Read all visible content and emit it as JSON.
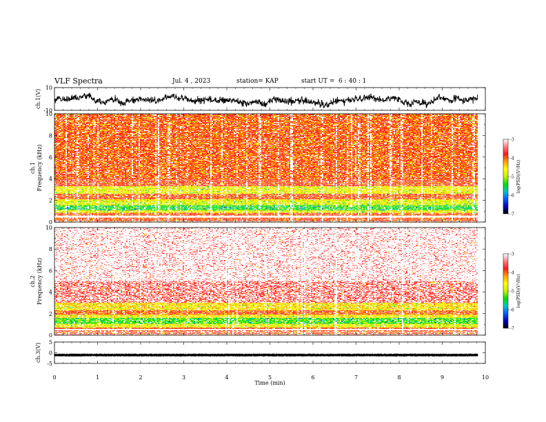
{
  "header": {
    "title": "VLF Spectra",
    "date": "Jul. 4 , 2023",
    "station": "station= KAP",
    "start": "start UT =  6 : 40 : 1"
  },
  "chart_data": [
    {
      "type": "line",
      "panel": "ch1-waveform",
      "ylabel": "ch.1(V)",
      "ylim": [
        -10,
        10
      ],
      "yticks": [
        10,
        -10
      ],
      "xlim": [
        0,
        10
      ],
      "x_data_extent": [
        0,
        9.82
      ],
      "series": [
        {
          "approx_mean": 0,
          "approx_range": [
            -8,
            5
          ]
        }
      ]
    },
    {
      "type": "heatmap",
      "panel": "ch1-spectrogram",
      "ylabel": "ch.1\nFrequency (kHz)",
      "ylim": [
        0,
        10
      ],
      "yticks": [
        0,
        2,
        4,
        6,
        8,
        10
      ],
      "xlim": [
        0,
        10
      ],
      "x_data_extent": [
        0,
        9.82
      ],
      "bands": [
        {
          "f_range": [
            4.0,
            10.0
          ],
          "level": -3.95,
          "style": "dense red"
        },
        {
          "f_range": [
            3.3,
            4.0
          ],
          "level": -3.85,
          "style": "red mottled"
        },
        {
          "f_range": [
            2.6,
            3.3
          ],
          "level": -4.7,
          "style": "yellow"
        },
        {
          "f_range": [
            2.1,
            2.6
          ],
          "level": -3.9,
          "style": "red"
        },
        {
          "f_range": [
            1.95,
            2.1
          ],
          "level": -4.6,
          "style": "yellow"
        },
        {
          "f_range": [
            1.55,
            1.95
          ],
          "level": -4.8,
          "style": "yellow"
        },
        {
          "f_range": [
            1.1,
            1.55
          ],
          "level": -5.4,
          "style": "green"
        },
        {
          "f_range": [
            0.85,
            1.1
          ],
          "level": -4.7,
          "style": "yellow"
        },
        {
          "f_range": [
            0.0,
            0.85
          ],
          "level": -3.9,
          "style": "red white-lines"
        }
      ]
    },
    {
      "type": "heatmap",
      "panel": "ch2-spectrogram",
      "ylabel": "ch.2\nFrequency (kHz)",
      "ylim": [
        0,
        10
      ],
      "yticks": [
        0,
        2,
        4,
        6,
        8,
        10
      ],
      "xlim": [
        0,
        10
      ],
      "x_data_extent": [
        0,
        9.82
      ],
      "bands": [
        {
          "f_range": [
            5.0,
            10.0
          ],
          "level": -3.2,
          "style": "sparse pink"
        },
        {
          "f_range": [
            3.0,
            5.0
          ],
          "level": -3.5,
          "style": "pink-red"
        },
        {
          "f_range": [
            2.3,
            3.0
          ],
          "level": -4.5,
          "style": "yellow"
        },
        {
          "f_range": [
            1.9,
            2.3
          ],
          "level": -3.95,
          "style": "red"
        },
        {
          "f_range": [
            1.6,
            1.9
          ],
          "level": -4.6,
          "style": "yellow"
        },
        {
          "f_range": [
            1.05,
            1.6
          ],
          "level": -5.3,
          "style": "green"
        },
        {
          "f_range": [
            0.7,
            1.05
          ],
          "level": -4.7,
          "style": "yellow"
        },
        {
          "f_range": [
            0.0,
            0.7
          ],
          "level": -3.9,
          "style": "red white-lines"
        }
      ]
    },
    {
      "type": "line",
      "panel": "ch3-waveform",
      "ylabel": "ch.3(V)",
      "ylim": [
        -5,
        5
      ],
      "yticks": [
        5,
        0,
        -5
      ],
      "xlim": [
        0,
        10
      ],
      "x_data_extent": [
        0,
        9.82
      ],
      "xlabel": "Time (min)",
      "xticks": [
        0,
        1,
        2,
        3,
        4,
        5,
        6,
        7,
        8,
        9,
        10
      ],
      "series": [
        {
          "approx_mean": -1.0,
          "approx_range": [
            -1.8,
            -0.4
          ]
        }
      ]
    }
  ],
  "colorbar": {
    "label": "log(PSD)(V²/Hz)",
    "range": [
      -7,
      -3
    ],
    "ticks": [
      -3,
      -4,
      -5,
      -6,
      -7
    ],
    "colormap": [
      "#000000",
      "#0000c8",
      "#0060ff",
      "#00c8c8",
      "#00e000",
      "#c8f000",
      "#ffff00",
      "#ffa000",
      "#ff1a1a",
      "#ff8080",
      "#ffffff"
    ]
  }
}
